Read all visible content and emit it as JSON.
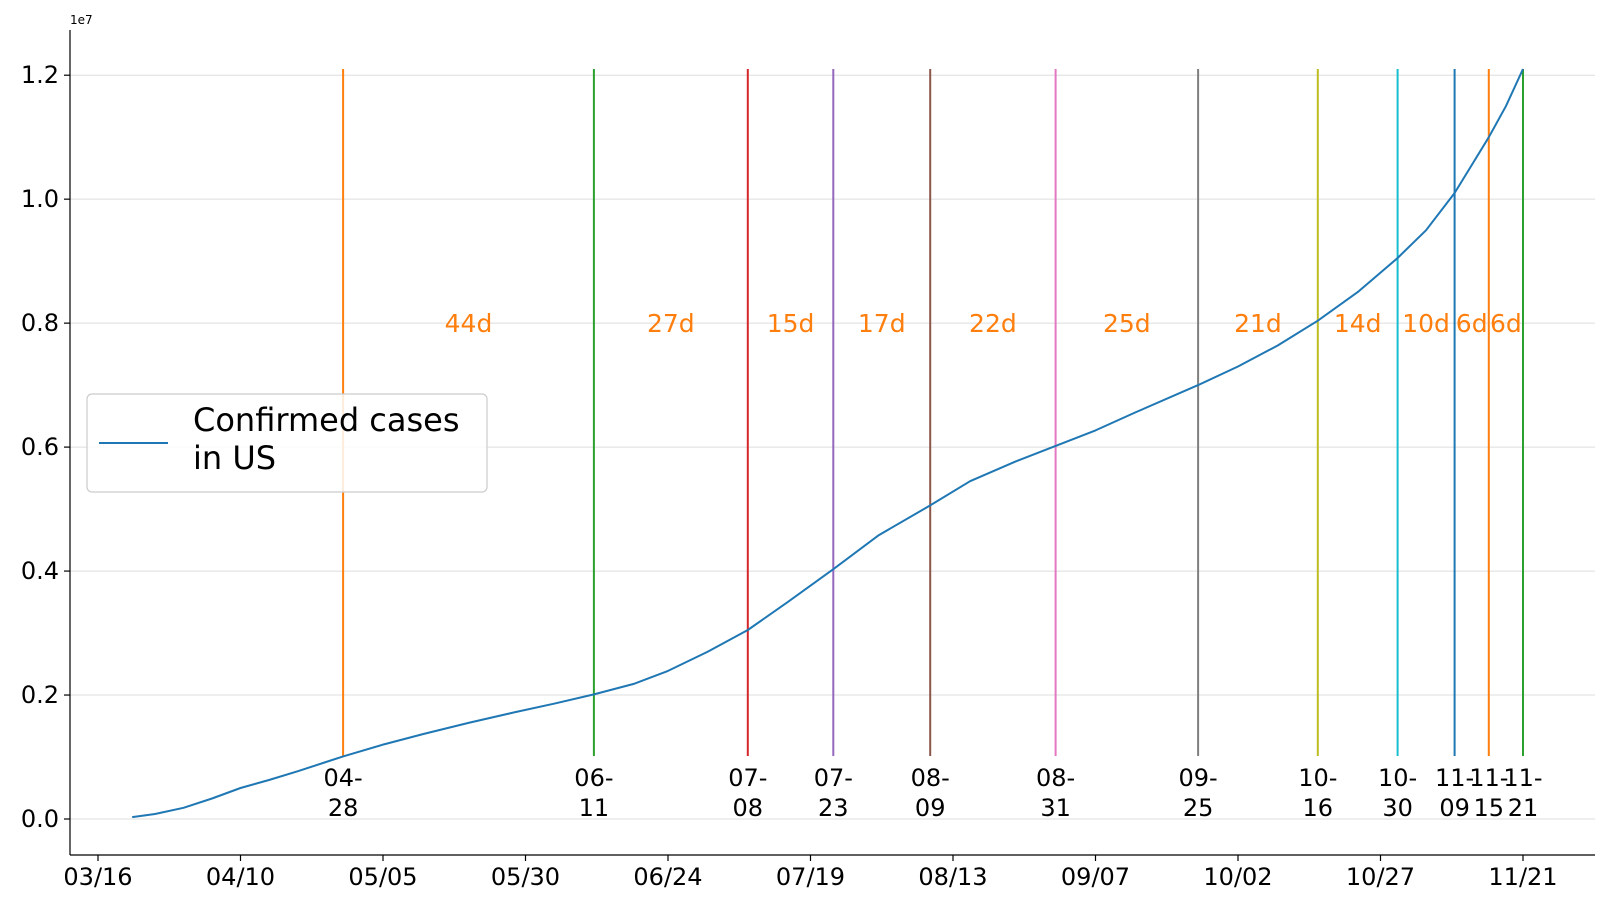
{
  "chart_data": {
    "type": "line",
    "title": "",
    "xlabel": "",
    "ylabel": "",
    "y_exponent_label": "1e7",
    "xlim": [
      "2020-03-16",
      "2020-11-21"
    ],
    "ylim": [
      0,
      12100000
    ],
    "grid": "horizontal",
    "legend_position": "center-left",
    "x_ticks": [
      "03/16",
      "04/10",
      "05/05",
      "05/30",
      "06/24",
      "07/19",
      "08/13",
      "09/07",
      "10/02",
      "10/27",
      "11/21"
    ],
    "y_ticks": [
      "0.0",
      "0.2",
      "0.4",
      "0.6",
      "0.8",
      "1.0",
      "1.2"
    ],
    "series": [
      {
        "name": "Confirmed cases\nin US",
        "color": "#1f77b4",
        "points": [
          [
            "2020-03-22",
            30000
          ],
          [
            "2020-03-26",
            80000
          ],
          [
            "2020-03-31",
            180000
          ],
          [
            "2020-04-05",
            330000
          ],
          [
            "2020-04-10",
            500000
          ],
          [
            "2020-04-15",
            630000
          ],
          [
            "2020-04-20",
            770000
          ],
          [
            "2020-04-25",
            920000
          ],
          [
            "2020-04-28",
            1010000
          ],
          [
            "2020-05-05",
            1200000
          ],
          [
            "2020-05-12",
            1370000
          ],
          [
            "2020-05-20",
            1550000
          ],
          [
            "2020-05-28",
            1720000
          ],
          [
            "2020-06-04",
            1860000
          ],
          [
            "2020-06-11",
            2010000
          ],
          [
            "2020-06-18",
            2180000
          ],
          [
            "2020-06-24",
            2390000
          ],
          [
            "2020-07-01",
            2700000
          ],
          [
            "2020-07-08",
            3050000
          ],
          [
            "2020-07-15",
            3500000
          ],
          [
            "2020-07-23",
            4030000
          ],
          [
            "2020-07-31",
            4580000
          ],
          [
            "2020-08-09",
            5060000
          ],
          [
            "2020-08-16",
            5450000
          ],
          [
            "2020-08-24",
            5770000
          ],
          [
            "2020-08-31",
            6020000
          ],
          [
            "2020-09-07",
            6270000
          ],
          [
            "2020-09-14",
            6560000
          ],
          [
            "2020-09-25",
            7000000
          ],
          [
            "2020-10-02",
            7300000
          ],
          [
            "2020-10-09",
            7640000
          ],
          [
            "2020-10-16",
            8040000
          ],
          [
            "2020-10-23",
            8500000
          ],
          [
            "2020-10-30",
            9050000
          ],
          [
            "2020-11-04",
            9500000
          ],
          [
            "2020-11-09",
            10100000
          ],
          [
            "2020-11-12",
            10550000
          ],
          [
            "2020-11-15",
            11000000
          ],
          [
            "2020-11-18",
            11500000
          ],
          [
            "2020-11-21",
            12100000
          ]
        ]
      }
    ],
    "markers": [
      {
        "date": "2020-04-28",
        "label": [
          "04-",
          "28"
        ],
        "color": "#ff7f0e"
      },
      {
        "date": "2020-06-11",
        "label": [
          "06-",
          "11"
        ],
        "color": "#2ca02c"
      },
      {
        "date": "2020-07-08",
        "label": [
          "07-",
          "08"
        ],
        "color": "#d62728"
      },
      {
        "date": "2020-07-23",
        "label": [
          "07-",
          "23"
        ],
        "color": "#9467bd"
      },
      {
        "date": "2020-08-09",
        "label": [
          "08-",
          "09"
        ],
        "color": "#8c564b"
      },
      {
        "date": "2020-08-31",
        "label": [
          "08-",
          "31"
        ],
        "color": "#e377c2"
      },
      {
        "date": "2020-09-25",
        "label": [
          "09-",
          "25"
        ],
        "color": "#7f7f7f"
      },
      {
        "date": "2020-10-16",
        "label": [
          "10-",
          "16"
        ],
        "color": "#bcbd22"
      },
      {
        "date": "2020-10-30",
        "label": [
          "10-",
          "30"
        ],
        "color": "#17becf"
      },
      {
        "date": "2020-11-09",
        "label": [
          "11-",
          "09"
        ],
        "color": "#1f77b4"
      },
      {
        "date": "2020-11-15",
        "label": [
          "11-",
          "15"
        ],
        "color": "#ff7f0e"
      },
      {
        "date": "2020-11-21",
        "label": [
          "11-",
          "21"
        ],
        "color": "#2ca02c"
      }
    ],
    "gap_labels": [
      {
        "from": "2020-04-28",
        "to": "2020-06-11",
        "text": "44d"
      },
      {
        "from": "2020-06-11",
        "to": "2020-07-08",
        "text": "27d"
      },
      {
        "from": "2020-07-08",
        "to": "2020-07-23",
        "text": "15d"
      },
      {
        "from": "2020-07-23",
        "to": "2020-08-09",
        "text": "17d"
      },
      {
        "from": "2020-08-09",
        "to": "2020-08-31",
        "text": "22d"
      },
      {
        "from": "2020-08-31",
        "to": "2020-09-25",
        "text": "25d"
      },
      {
        "from": "2020-09-25",
        "to": "2020-10-16",
        "text": "21d"
      },
      {
        "from": "2020-10-16",
        "to": "2020-10-30",
        "text": "14d"
      },
      {
        "from": "2020-10-30",
        "to": "2020-11-09",
        "text": "10d"
      },
      {
        "from": "2020-11-09",
        "to": "2020-11-15",
        "text": "6d"
      },
      {
        "from": "2020-11-15",
        "to": "2020-11-21",
        "text": "6d"
      }
    ],
    "gap_label_color": "#ff7f0e"
  }
}
